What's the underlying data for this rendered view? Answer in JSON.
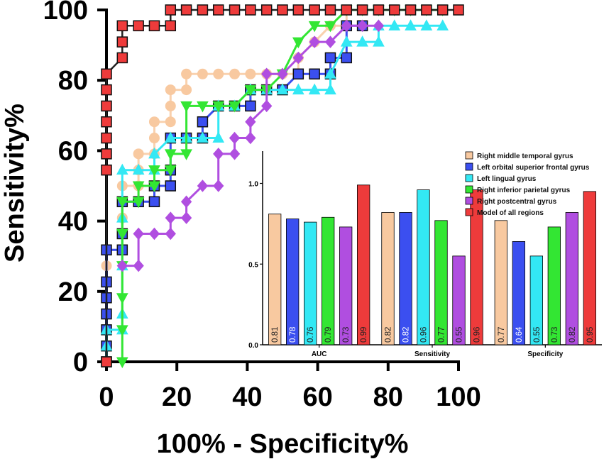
{
  "chart_data": [
    {
      "type": "line",
      "title": "",
      "xlabel": "100% - Specificity%",
      "ylabel": "Sensitivity%",
      "xlim": [
        0,
        100
      ],
      "ylim": [
        0,
        100
      ],
      "xticks": [
        "0",
        "20",
        "40",
        "60",
        "80",
        "100"
      ],
      "yticks": [
        "0",
        "20",
        "40",
        "60",
        "80",
        "100"
      ],
      "series": [
        {
          "name": "Right middle temporal gyrus",
          "color": "#f8c9a0",
          "marker": "circle",
          "x": [
            0,
            0,
            0,
            0,
            0,
            4.5,
            4.5,
            4.5,
            9.1,
            9.1,
            9.1,
            13.6,
            13.6,
            13.6,
            18.2,
            18.2,
            18.2,
            22.7,
            22.7,
            27.3,
            31.8,
            36.4,
            40.9,
            45.5,
            50,
            54.5,
            54.5,
            59.1,
            63.6,
            68.2,
            68.2,
            72.7,
            77.3
          ],
          "y": [
            0,
            9.1,
            18.2,
            27.3,
            31.8,
            31.8,
            40.9,
            50,
            50,
            54.5,
            59.1,
            59.1,
            63.6,
            68.2,
            68.2,
            72.7,
            77.3,
            77.3,
            81.8,
            81.8,
            81.8,
            81.8,
            81.8,
            81.8,
            81.8,
            81.8,
            86.4,
            90.9,
            95.5,
            95.5,
            100,
            100,
            100
          ]
        },
        {
          "name": "Left orbital superior frontal gyrus",
          "color": "#3b4ff0",
          "marker": "square",
          "x": [
            0,
            0,
            0,
            0,
            0,
            0,
            0,
            4.5,
            4.5,
            4.5,
            9.1,
            13.6,
            13.6,
            18.2,
            18.2,
            18.2,
            22.7,
            27.3,
            27.3,
            31.8,
            36.4,
            40.9,
            40.9,
            45.5,
            50,
            54.5,
            59.1,
            63.6,
            63.6,
            68.2,
            68.2,
            72.7
          ],
          "y": [
            0,
            4.5,
            9.1,
            13.6,
            18.2,
            22.7,
            31.8,
            31.8,
            36.4,
            45.5,
            45.5,
            45.5,
            50,
            50,
            54.5,
            63.6,
            63.6,
            63.6,
            68.2,
            72.7,
            72.7,
            72.7,
            77.3,
            77.3,
            77.3,
            81.8,
            81.8,
            81.8,
            86.4,
            86.4,
            95.5,
            95.5
          ]
        },
        {
          "name": "Left lingual gyrus",
          "color": "#33e8f4",
          "marker": "triangle-up",
          "x": [
            0,
            0,
            0,
            4.5,
            4.5,
            4.5,
            4.5,
            4.5,
            9.1,
            13.6,
            13.6,
            18.2,
            22.7,
            27.3,
            31.8,
            31.8,
            36.4,
            40.9,
            45.5,
            50,
            54.5,
            59.1,
            63.6,
            63.6,
            68.2,
            72.7,
            77.3,
            77.3,
            81.8,
            86.4,
            90.9,
            95.5
          ],
          "y": [
            0,
            4.5,
            9.1,
            9.1,
            13.6,
            27.3,
            40.9,
            54.5,
            54.5,
            54.5,
            59.1,
            63.6,
            63.6,
            63.6,
            63.6,
            72.7,
            72.7,
            77.3,
            77.3,
            77.3,
            77.3,
            77.3,
            77.3,
            81.8,
            90.9,
            90.9,
            90.9,
            95.5,
            95.5,
            95.5,
            95.5,
            95.5
          ]
        },
        {
          "name": "Right inferior parietal gyrus",
          "color": "#33e633",
          "marker": "triangle-down",
          "x": [
            4.5,
            4.5,
            4.5,
            4.5,
            4.5,
            4.5,
            9.1,
            9.1,
            13.6,
            13.6,
            18.2,
            18.2,
            22.7,
            22.7,
            27.3,
            31.8,
            36.4,
            40.9,
            45.5,
            50,
            54.5,
            59.1,
            63.6,
            68.2,
            72.7,
            77.3,
            81.8,
            86.4,
            90.9,
            95.5
          ],
          "y": [
            0,
            9.1,
            18.2,
            27.3,
            36.4,
            45.5,
            45.5,
            50,
            50,
            54.5,
            54.5,
            59.1,
            59.1,
            72.7,
            72.7,
            72.7,
            72.7,
            77.3,
            77.3,
            81.8,
            90.9,
            95.5,
            95.5,
            100,
            100,
            100,
            100,
            100,
            100,
            100
          ]
        },
        {
          "name": "Right postcentral gyrus",
          "color": "#b04ee0",
          "marker": "diamond",
          "x": [
            4.5,
            9.1,
            9.1,
            13.6,
            18.2,
            18.2,
            22.7,
            22.7,
            27.3,
            31.8,
            31.8,
            36.4,
            36.4,
            40.9,
            40.9,
            45.5,
            45.5,
            50,
            54.5,
            59.1,
            63.6,
            68.2,
            72.7,
            77.3
          ],
          "y": [
            27.3,
            27.3,
            36.4,
            36.4,
            36.4,
            40.9,
            40.9,
            45.5,
            50,
            50,
            59.1,
            59.1,
            63.6,
            63.6,
            68.2,
            72.7,
            81.8,
            81.8,
            86.4,
            90.9,
            90.9,
            95.5,
            95.5,
            95.5
          ]
        },
        {
          "name": "Model of all regions",
          "color": "#ee3b3b",
          "marker": "square",
          "x": [
            0,
            0,
            0,
            0,
            0,
            0,
            0,
            0,
            4.5,
            4.5,
            4.5,
            9.1,
            13.6,
            18.2,
            18.2,
            22.7,
            27.3,
            31.8,
            36.4,
            40.9,
            45.5,
            50,
            54.5,
            59.1,
            63.6,
            68.2,
            72.7,
            77.3,
            81.8,
            86.4,
            90.9,
            95.5,
            100
          ],
          "y": [
            0,
            54.5,
            59.1,
            63.6,
            68.2,
            72.7,
            77.3,
            81.8,
            86.4,
            90.9,
            95.5,
            95.5,
            95.5,
            95.5,
            100,
            100,
            100,
            100,
            100,
            100,
            100,
            100,
            100,
            100,
            100,
            100,
            100,
            100,
            100,
            100,
            100,
            100,
            100
          ]
        }
      ]
    },
    {
      "type": "bar",
      "title": "",
      "categories": [
        "AUC",
        "Sensitivity",
        "Specificity"
      ],
      "ylim": [
        0,
        1.2
      ],
      "yticks": [
        "0.0",
        "0.5",
        "1.0"
      ],
      "series": [
        {
          "name": "Right middle temporal gyrus",
          "color": "#f8c9a0",
          "values": [
            0.81,
            0.82,
            0.77
          ]
        },
        {
          "name": "Left orbital superior frontal gyrus",
          "color": "#3b4ff0",
          "values": [
            0.78,
            0.82,
            0.64
          ]
        },
        {
          "name": "Left lingual gyrus",
          "color": "#33e8f4",
          "values": [
            0.76,
            0.96,
            0.55
          ]
        },
        {
          "name": "Right inferior parietal gyrus",
          "color": "#33e633",
          "values": [
            0.79,
            0.77,
            0.73
          ]
        },
        {
          "name": "Right postcentral gyrus",
          "color": "#b04ee0",
          "values": [
            0.73,
            0.55,
            0.82
          ]
        },
        {
          "name": "Model of all regions",
          "color": "#ee3b3b",
          "values": [
            0.99,
            0.96,
            0.95
          ]
        }
      ],
      "data_labels": [
        [
          "0.81",
          "0.78",
          "0.76",
          "0.79",
          "0.73",
          "0.99"
        ],
        [
          "0.82",
          "0.82",
          "0.96",
          "0.77",
          "0.55",
          "0.96"
        ],
        [
          "0.77",
          "0.64",
          "0.55",
          "0.73",
          "0.82",
          "0.95"
        ]
      ],
      "legend_position": "top-right"
    }
  ]
}
